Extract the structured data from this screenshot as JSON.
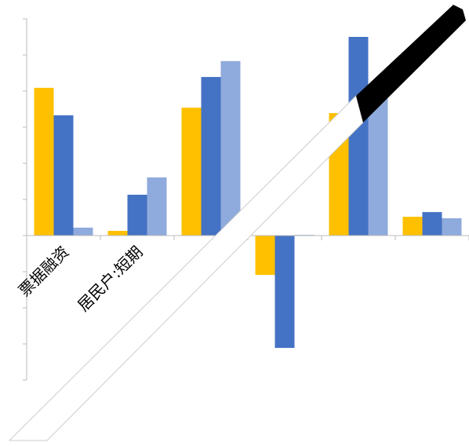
{
  "chart_data": {
    "type": "bar",
    "categories": [
      "票据融资",
      "居民户:短期",
      null,
      null,
      null,
      null
    ],
    "series": [
      {
        "color": "#ffc000",
        "values": [
          4.09,
          0.13,
          3.54,
          -1.09,
          3.39,
          0.52
        ]
      },
      {
        "color": "#4472c4",
        "values": [
          3.33,
          1.13,
          4.39,
          -3.11,
          5.5,
          0.65
        ]
      },
      {
        "color": "#8faadc",
        "values": [
          0.22,
          1.61,
          4.83,
          0.02,
          3.9,
          0.48
        ]
      }
    ],
    "ylim": [
      -4,
      6
    ],
    "yticks": [
      -4,
      -3,
      -2,
      -1,
      0,
      1,
      2,
      3,
      4,
      5,
      6
    ]
  }
}
